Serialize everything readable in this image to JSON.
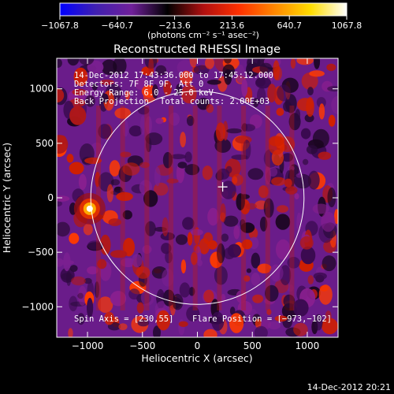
{
  "chart_data": {
    "type": "heatmap",
    "title": "Reconstructed RHESSI Image",
    "xlabel": "Heliocentric X (arcsec)",
    "ylabel": "Heliocentric Y (arcsec)",
    "xlim": [
      -1280,
      1280
    ],
    "ylim": [
      -1280,
      1280
    ],
    "xticks": [
      -1000,
      -500,
      0,
      500,
      1000
    ],
    "yticks": [
      -1000,
      -500,
      0,
      500,
      1000
    ],
    "xtick_labels": [
      "−1000",
      "−500",
      "0",
      "500",
      "1000"
    ],
    "ytick_labels": [
      "−1000",
      "−500",
      "0",
      "500",
      "1000"
    ],
    "colorbar": {
      "min": -1067.8,
      "max": 1067.8,
      "ticks": [
        -1067.8,
        -640.7,
        -213.6,
        213.6,
        640.7,
        1067.8
      ],
      "tick_labels": [
        "−1067.8",
        "−640.7",
        "−213.6",
        "213.6",
        "640.7",
        "1067.8"
      ],
      "units_label": "(photons cm⁻² s⁻¹ asec⁻²)",
      "colormap": [
        "#0000ff",
        "#4020b0",
        "#70209a",
        "#000000",
        "#b01010",
        "#ff3000",
        "#ff8800",
        "#ffdd00",
        "#ffffff"
      ]
    },
    "annotations": [
      "14-Dec-2012 17:43:36.000 to 17:45:12.000",
      "Detectors: 7F 8F 9F, Att 0",
      "Energy Range: 6.0 - 25.0 keV",
      "Back Projection",
      "Total counts: 2.00E+03",
      "Spin Axis = [230,55]",
      "Flare Position = [−973,−102]"
    ],
    "sources": [
      {
        "x": -980,
        "y": -100,
        "value": 1067.8,
        "label": "bright source"
      }
    ],
    "solar_limb_radius_arcsec": 970,
    "crosshair": {
      "x": 230,
      "y": 100
    },
    "timestamp": "14-Dec-2012 20:21"
  },
  "colors": {
    "background": "#000000",
    "axes": "#ffffff",
    "text": "#ffffff"
  }
}
